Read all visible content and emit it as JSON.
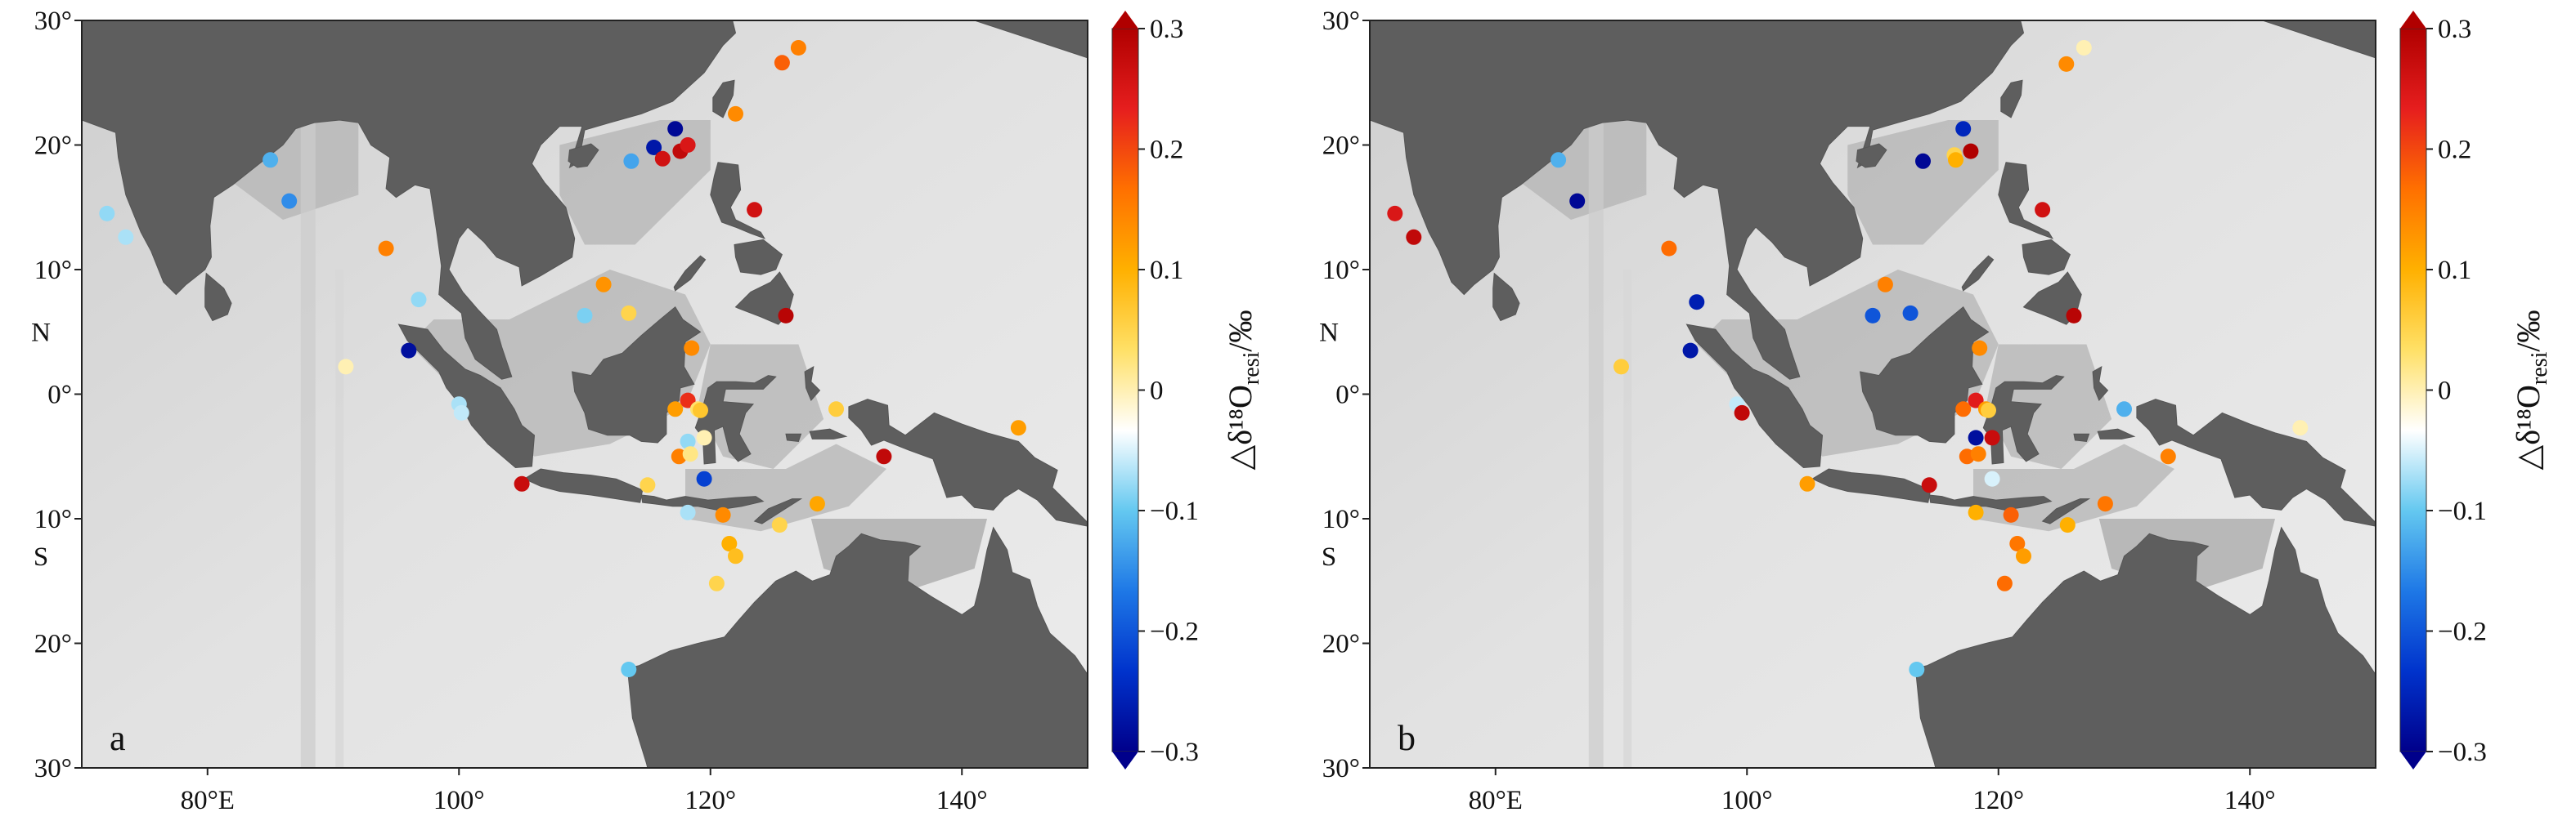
{
  "chart_data": [
    {
      "type": "scatter",
      "panel_label": "a",
      "x_range": [
        70,
        150
      ],
      "y_range": [
        -30,
        30
      ],
      "x_ticks": [
        {
          "v": 80,
          "label": "80°E"
        },
        {
          "v": 100,
          "label": "100°"
        },
        {
          "v": 120,
          "label": "120°"
        },
        {
          "v": 140,
          "label": "140°"
        }
      ],
      "y_ticks": [
        {
          "v": 30,
          "label": "30°"
        },
        {
          "v": 20,
          "label": "20°"
        },
        {
          "v": 10,
          "label": "10°"
        },
        {
          "v": 0,
          "label": "0°"
        },
        {
          "v": -10,
          "label": "10°"
        },
        {
          "v": -20,
          "label": "20°"
        },
        {
          "v": -30,
          "label": "30°"
        }
      ],
      "y_hemisphere": [
        {
          "v": 5,
          "label": "N"
        },
        {
          "v": -13,
          "label": "S"
        }
      ],
      "colorbar": {
        "label": "△δ¹⁸O",
        "label_sub": "resi",
        "label_tail": "/‰",
        "range": [
          -0.3,
          0.3
        ],
        "ticks": [
          "0.3",
          "0.2",
          "0.1",
          "0",
          "−0.1",
          "−0.2",
          "−0.3"
        ],
        "colors": [
          "#00008b",
          "#0033cc",
          "#1e78e6",
          "#64c8f0",
          "#ffffff",
          "#ffe066",
          "#ffb000",
          "#ff7000",
          "#e61e1e",
          "#b00000"
        ]
      },
      "points": [
        {
          "lon": 72,
          "lat": 14.5,
          "v": -0.08
        },
        {
          "lon": 73.5,
          "lat": 12.6,
          "v": -0.07
        },
        {
          "lon": 85,
          "lat": 18.8,
          "v": -0.12
        },
        {
          "lon": 86.5,
          "lat": 15.5,
          "v": -0.15
        },
        {
          "lon": 91,
          "lat": 2.2,
          "v": 0.0
        },
        {
          "lon": 94.2,
          "lat": 11.7,
          "v": 0.15
        },
        {
          "lon": 96.8,
          "lat": 7.6,
          "v": -0.08
        },
        {
          "lon": 96,
          "lat": 3.5,
          "v": -0.28
        },
        {
          "lon": 100,
          "lat": -0.8,
          "v": -0.07
        },
        {
          "lon": 100.2,
          "lat": -1.5,
          "v": -0.06
        },
        {
          "lon": 105,
          "lat": -7.2,
          "v": 0.27
        },
        {
          "lon": 110,
          "lat": 6.3,
          "v": -0.09
        },
        {
          "lon": 111.5,
          "lat": 8.8,
          "v": 0.13
        },
        {
          "lon": 113.5,
          "lat": 6.5,
          "v": 0.05
        },
        {
          "lon": 113.7,
          "lat": 18.7,
          "v": -0.13
        },
        {
          "lon": 115.5,
          "lat": 19.8,
          "v": -0.27
        },
        {
          "lon": 116.2,
          "lat": 18.9,
          "v": 0.26
        },
        {
          "lon": 117.2,
          "lat": 21.3,
          "v": -0.29
        },
        {
          "lon": 117.6,
          "lat": 19.5,
          "v": 0.28
        },
        {
          "lon": 118.2,
          "lat": 20.0,
          "v": 0.25
        },
        {
          "lon": 122,
          "lat": 22.5,
          "v": 0.14
        },
        {
          "lon": 125.7,
          "lat": 26.6,
          "v": 0.18
        },
        {
          "lon": 127,
          "lat": 27.8,
          "v": 0.15
        },
        {
          "lon": 123.5,
          "lat": 14.8,
          "v": 0.26
        },
        {
          "lon": 126,
          "lat": 6.3,
          "v": 0.29
        },
        {
          "lon": 115,
          "lat": -7.3,
          "v": 0.05
        },
        {
          "lon": 117.2,
          "lat": -1.2,
          "v": 0.12
        },
        {
          "lon": 118.2,
          "lat": -0.5,
          "v": 0.22
        },
        {
          "lon": 118.5,
          "lat": 3.7,
          "v": 0.14
        },
        {
          "lon": 117.5,
          "lat": -5.0,
          "v": 0.15
        },
        {
          "lon": 118.2,
          "lat": -3.8,
          "v": -0.08
        },
        {
          "lon": 118.4,
          "lat": -4.8,
          "v": 0.02
        },
        {
          "lon": 119,
          "lat": -1.2,
          "v": 0.03
        },
        {
          "lon": 119.2,
          "lat": -1.3,
          "v": 0.07
        },
        {
          "lon": 119.5,
          "lat": -3.5,
          "v": 0.0
        },
        {
          "lon": 119.5,
          "lat": -6.8,
          "v": -0.22
        },
        {
          "lon": 118.2,
          "lat": -9.5,
          "v": -0.07
        },
        {
          "lon": 121,
          "lat": -9.7,
          "v": 0.14
        },
        {
          "lon": 121.5,
          "lat": -12.0,
          "v": 0.1
        },
        {
          "lon": 122,
          "lat": -13.0,
          "v": 0.08
        },
        {
          "lon": 120.5,
          "lat": -15.2,
          "v": 0.05
        },
        {
          "lon": 125.5,
          "lat": -10.5,
          "v": 0.05
        },
        {
          "lon": 128.5,
          "lat": -8.8,
          "v": 0.11
        },
        {
          "lon": 130,
          "lat": -1.2,
          "v": 0.06
        },
        {
          "lon": 133.8,
          "lat": -5.0,
          "v": 0.28
        },
        {
          "lon": 144.5,
          "lat": -2.7,
          "v": 0.12
        },
        {
          "lon": 113.5,
          "lat": -22.1,
          "v": -0.1
        }
      ]
    },
    {
      "type": "scatter",
      "panel_label": "b",
      "x_range": [
        70,
        150
      ],
      "y_range": [
        -30,
        30
      ],
      "x_ticks": [
        {
          "v": 80,
          "label": "80°E"
        },
        {
          "v": 100,
          "label": "100°"
        },
        {
          "v": 120,
          "label": "120°"
        },
        {
          "v": 140,
          "label": "140°"
        }
      ],
      "y_ticks": [
        {
          "v": 30,
          "label": "30°"
        },
        {
          "v": 20,
          "label": "20°"
        },
        {
          "v": 10,
          "label": "10°"
        },
        {
          "v": 0,
          "label": "0°"
        },
        {
          "v": -10,
          "label": "10°"
        },
        {
          "v": -20,
          "label": "20°"
        },
        {
          "v": -30,
          "label": "30°"
        }
      ],
      "y_hemisphere": [
        {
          "v": 5,
          "label": "N"
        },
        {
          "v": -13,
          "label": "S"
        }
      ],
      "colorbar": {
        "label": "△δ¹⁸O",
        "label_sub": "resi",
        "label_tail": "/‰",
        "range": [
          -0.3,
          0.3
        ],
        "ticks": [
          "0.3",
          "0.2",
          "0.1",
          "0",
          "−0.1",
          "−0.2",
          "−0.3"
        ],
        "colors": [
          "#00008b",
          "#0033cc",
          "#1e78e6",
          "#64c8f0",
          "#ffffff",
          "#ffe066",
          "#ffb000",
          "#ff7000",
          "#e61e1e",
          "#b00000"
        ]
      },
      "points": [
        {
          "lon": 72,
          "lat": 14.5,
          "v": 0.25
        },
        {
          "lon": 73.5,
          "lat": 12.6,
          "v": 0.28
        },
        {
          "lon": 85,
          "lat": 18.8,
          "v": -0.12
        },
        {
          "lon": 86.5,
          "lat": 15.5,
          "v": -0.29
        },
        {
          "lon": 90,
          "lat": 2.2,
          "v": 0.06
        },
        {
          "lon": 93.8,
          "lat": 11.7,
          "v": 0.17
        },
        {
          "lon": 96,
          "lat": 7.4,
          "v": -0.26
        },
        {
          "lon": 95.5,
          "lat": 3.5,
          "v": -0.27
        },
        {
          "lon": 99.2,
          "lat": -0.8,
          "v": -0.06
        },
        {
          "lon": 99.6,
          "lat": -1.5,
          "v": 0.28
        },
        {
          "lon": 104.8,
          "lat": -7.2,
          "v": 0.12
        },
        {
          "lon": 110,
          "lat": 6.3,
          "v": -0.2
        },
        {
          "lon": 111,
          "lat": 8.8,
          "v": 0.15
        },
        {
          "lon": 113,
          "lat": 6.5,
          "v": -0.2
        },
        {
          "lon": 114,
          "lat": 18.7,
          "v": -0.29
        },
        {
          "lon": 116.5,
          "lat": 19.2,
          "v": 0.05
        },
        {
          "lon": 116.6,
          "lat": 18.8,
          "v": 0.1
        },
        {
          "lon": 117.2,
          "lat": 21.3,
          "v": -0.25
        },
        {
          "lon": 117.8,
          "lat": 19.5,
          "v": 0.3
        },
        {
          "lon": 125.4,
          "lat": 26.5,
          "v": 0.14
        },
        {
          "lon": 126.8,
          "lat": 27.8,
          "v": 0.0
        },
        {
          "lon": 123.5,
          "lat": 14.8,
          "v": 0.26
        },
        {
          "lon": 126,
          "lat": 6.3,
          "v": 0.29
        },
        {
          "lon": 114.5,
          "lat": -7.3,
          "v": 0.27
        },
        {
          "lon": 117.2,
          "lat": -1.2,
          "v": 0.17
        },
        {
          "lon": 118.2,
          "lat": -0.5,
          "v": 0.24
        },
        {
          "lon": 118.5,
          "lat": 3.7,
          "v": 0.14
        },
        {
          "lon": 117.5,
          "lat": -5.0,
          "v": 0.17
        },
        {
          "lon": 118.2,
          "lat": -3.5,
          "v": -0.28
        },
        {
          "lon": 118.4,
          "lat": -4.8,
          "v": 0.15
        },
        {
          "lon": 119,
          "lat": -1.2,
          "v": 0.12
        },
        {
          "lon": 119.2,
          "lat": -1.3,
          "v": 0.06
        },
        {
          "lon": 119.5,
          "lat": -3.5,
          "v": 0.27
        },
        {
          "lon": 119.5,
          "lat": -6.8,
          "v": -0.05
        },
        {
          "lon": 118.2,
          "lat": -9.5,
          "v": 0.1
        },
        {
          "lon": 121,
          "lat": -9.7,
          "v": 0.18
        },
        {
          "lon": 121.5,
          "lat": -12.0,
          "v": 0.16
        },
        {
          "lon": 122,
          "lat": -13.0,
          "v": 0.12
        },
        {
          "lon": 120.5,
          "lat": -15.2,
          "v": 0.17
        },
        {
          "lon": 125.5,
          "lat": -10.5,
          "v": 0.1
        },
        {
          "lon": 128.5,
          "lat": -8.8,
          "v": 0.16
        },
        {
          "lon": 130,
          "lat": -1.2,
          "v": -0.12
        },
        {
          "lon": 133.5,
          "lat": -5.0,
          "v": 0.15
        },
        {
          "lon": 144,
          "lat": -2.7,
          "v": 0.0
        },
        {
          "lon": 113.5,
          "lat": -22.1,
          "v": -0.1
        }
      ]
    }
  ]
}
